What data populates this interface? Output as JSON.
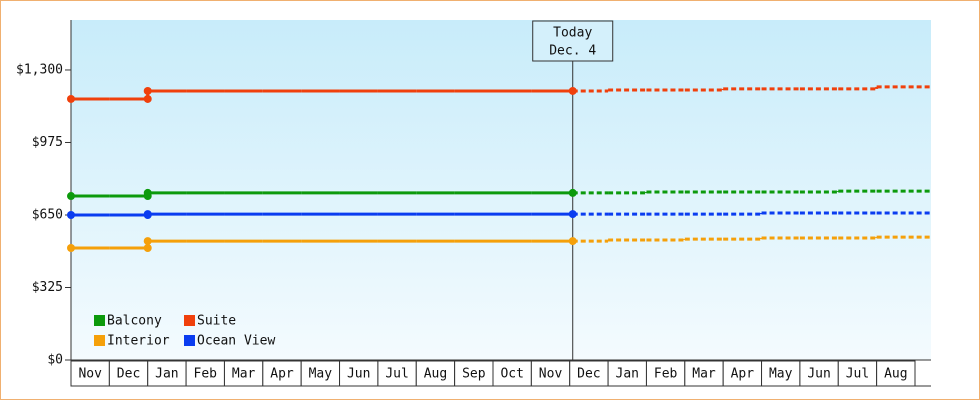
{
  "chart_data": {
    "type": "step-line",
    "categories": [
      "Nov",
      "Dec",
      "Jan",
      "Feb",
      "Mar",
      "Apr",
      "May",
      "Jun",
      "Jul",
      "Aug",
      "Sep",
      "Oct",
      "Nov",
      "Dec",
      "Jan",
      "Feb",
      "Mar",
      "Apr",
      "May",
      "Jun",
      "Jul",
      "Aug"
    ],
    "ylim": [
      0,
      1524
    ],
    "yticks": [
      {
        "value": 0,
        "label": "$0"
      },
      {
        "value": 325,
        "label": "$325"
      },
      {
        "value": 650,
        "label": "$650"
      },
      {
        "value": 975,
        "label": "$975"
      },
      {
        "value": 1300,
        "label": "$1,300"
      }
    ],
    "annotation": [
      "Today",
      "Dec. 4"
    ],
    "legend": "lower left",
    "series": [
      {
        "name": "Balcony",
        "color": "#0c9a0c",
        "values": [
          735,
          735,
          749,
          749,
          749,
          749,
          749,
          749,
          749,
          749,
          749,
          749,
          749,
          749,
          null,
          null,
          null,
          null,
          null,
          null,
          null,
          null
        ],
        "projected": [
          null,
          null,
          null,
          null,
          null,
          null,
          null,
          null,
          null,
          null,
          null,
          null,
          null,
          749,
          749,
          753,
          753,
          753,
          753,
          753,
          757,
          757
        ]
      },
      {
        "name": "Suite",
        "color": "#f0400c",
        "values": [
          1170,
          1170,
          1206,
          1206,
          1206,
          1206,
          1206,
          1206,
          1206,
          1206,
          1206,
          1206,
          1206,
          1206,
          null,
          null,
          null,
          null,
          null,
          null,
          null,
          null
        ],
        "projected": [
          null,
          null,
          null,
          null,
          null,
          null,
          null,
          null,
          null,
          null,
          null,
          null,
          null,
          1206,
          1210,
          1210,
          1210,
          1215,
          1215,
          1215,
          1215,
          1224
        ]
      },
      {
        "name": "Interior",
        "color": "#f5a00a",
        "values": [
          502,
          502,
          533,
          533,
          533,
          533,
          533,
          533,
          533,
          533,
          533,
          533,
          533,
          533,
          null,
          null,
          null,
          null,
          null,
          null,
          null,
          null
        ],
        "projected": [
          null,
          null,
          null,
          null,
          null,
          null,
          null,
          null,
          null,
          null,
          null,
          null,
          null,
          533,
          538,
          538,
          542,
          542,
          547,
          547,
          547,
          551
        ]
      },
      {
        "name": "Ocean View",
        "color": "#0a3cf0",
        "values": [
          650,
          650,
          654,
          654,
          654,
          654,
          654,
          654,
          654,
          654,
          654,
          654,
          654,
          654,
          null,
          null,
          null,
          null,
          null,
          null,
          null,
          null
        ],
        "projected": [
          null,
          null,
          null,
          null,
          null,
          null,
          null,
          null,
          null,
          null,
          null,
          null,
          null,
          654,
          654,
          654,
          654,
          654,
          659,
          659,
          659,
          659
        ]
      }
    ]
  }
}
